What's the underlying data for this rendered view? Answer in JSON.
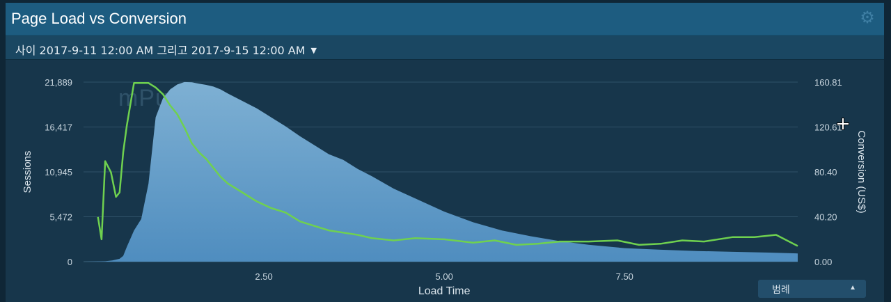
{
  "header": {
    "title": "Page Load vs Conversion",
    "gear_icon": "gear-icon"
  },
  "range": {
    "label": "사이 2017-9-11 12:00 AM 그리고 2017-9-15 12:00 AM"
  },
  "watermark": "mPulse",
  "legend_button": {
    "label": "범례"
  },
  "chart_data": {
    "type": "area+line",
    "xlabel": "Load Time",
    "ylabel_left": "Sessions",
    "ylabel_right": "Conversion (US$)",
    "x_ticks": [
      "2.50",
      "5.00",
      "7.50"
    ],
    "x_tick_values": [
      2.5,
      5.0,
      7.5
    ],
    "xlim": [
      0,
      9.9
    ],
    "y_left_ticks": [
      "0",
      "5,472",
      "10,945",
      "16,417",
      "21,889"
    ],
    "y_left_tick_values": [
      0,
      5472,
      10945,
      16417,
      21889
    ],
    "y_left_lim": [
      0,
      21889
    ],
    "y_right_ticks": [
      "0.00",
      "40.20",
      "80.40",
      "120.61",
      "160.81"
    ],
    "y_right_tick_values": [
      0,
      40.2,
      80.4,
      120.61,
      160.81
    ],
    "y_right_lim": [
      0,
      160.81
    ],
    "grid": true,
    "colors": {
      "sessions_fill": "#6fa3c8",
      "conversion_line": "#6fd14f",
      "grid": "#2f5168"
    },
    "series": [
      {
        "axis": "left",
        "kind": "area",
        "x": [
          0,
          0.3,
          0.4,
          0.5,
          0.55,
          0.6,
          0.7,
          0.8,
          0.9,
          1.0,
          1.1,
          1.2,
          1.3,
          1.4,
          1.5,
          1.6,
          1.7,
          1.8,
          1.9,
          2.0,
          2.2,
          2.4,
          2.6,
          2.8,
          3.0,
          3.2,
          3.4,
          3.6,
          3.8,
          4.0,
          4.3,
          4.6,
          5.0,
          5.4,
          5.8,
          6.2,
          6.6,
          7.0,
          7.5,
          8.0,
          8.5,
          9.0,
          9.5,
          9.9
        ],
        "y": [
          0,
          50,
          150,
          350,
          700,
          1800,
          3800,
          5200,
          9500,
          17600,
          19900,
          21000,
          21600,
          21900,
          21870,
          21700,
          21550,
          21350,
          21000,
          20500,
          19600,
          18700,
          17600,
          16500,
          15300,
          14200,
          13100,
          12400,
          11300,
          10400,
          8900,
          7700,
          6100,
          4800,
          3800,
          3100,
          2500,
          2050,
          1650,
          1450,
          1300,
          1200,
          1100,
          1000
        ]
      },
      {
        "axis": "right",
        "kind": "line",
        "x": [
          0.2,
          0.25,
          0.3,
          0.38,
          0.45,
          0.5,
          0.55,
          0.6,
          0.7,
          0.8,
          0.9,
          1.0,
          1.1,
          1.2,
          1.3,
          1.4,
          1.5,
          1.6,
          1.7,
          1.8,
          1.9,
          2.0,
          2.2,
          2.4,
          2.6,
          2.8,
          3.0,
          3.2,
          3.4,
          3.6,
          3.8,
          4.0,
          4.3,
          4.6,
          5.0,
          5.4,
          5.7,
          6.0,
          6.3,
          6.6,
          7.0,
          7.4,
          7.7,
          8.0,
          8.3,
          8.6,
          9.0,
          9.3,
          9.6,
          9.9
        ],
        "y": [
          40,
          20,
          90,
          80,
          58,
          62,
          98,
          122,
          160,
          160,
          160,
          156,
          150,
          140,
          132,
          120,
          106,
          98,
          92,
          84,
          76,
          70,
          62,
          54,
          48,
          44,
          36,
          32,
          28,
          26,
          24,
          21,
          19,
          21,
          20,
          17,
          19,
          15,
          16,
          18,
          18,
          19,
          15,
          16,
          19,
          18,
          22,
          22,
          24,
          14
        ]
      }
    ]
  }
}
